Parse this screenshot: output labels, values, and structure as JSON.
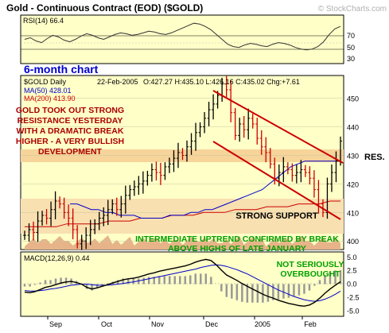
{
  "chart_data": {
    "type": "bar",
    "title": "Gold - Continuous Contract (EOD) ($GOLD)",
    "watermark": "© StockCharts.com",
    "colors": {
      "background": "#ffffc8",
      "frame": "#000000",
      "up_bar": "#000000",
      "down_bar": "#cc0000",
      "ma50": "#0000cc",
      "ma200": "#cc0000",
      "channel": "#cc0000",
      "annotation_red": "#aa0000",
      "annotation_green": "#00a000",
      "resistance_band": "#f6d49a",
      "support_band": "#f8e0b0",
      "volume_fill": "#e6b488",
      "rsi_line": "#333333",
      "macd_line": "#000000",
      "signal_line": "#0000cc",
      "histogram": "#999999"
    },
    "rsi": {
      "label": "RSI(14) 66.4",
      "ticks": [
        "70",
        "50",
        "30"
      ],
      "ylim": [
        20,
        80
      ],
      "values": [
        50,
        52,
        48,
        46,
        51,
        55,
        53,
        49,
        47,
        50,
        54,
        57,
        55,
        52,
        50,
        53,
        56,
        58,
        57,
        55,
        56,
        58,
        60,
        59,
        57,
        56,
        58,
        61,
        64,
        67,
        70,
        69,
        66,
        62,
        56,
        50,
        44,
        41,
        40,
        43,
        45,
        44,
        42,
        41,
        44,
        46,
        45,
        43,
        40,
        38,
        37,
        38,
        41,
        47,
        56,
        63,
        66
      ]
    },
    "price": {
      "header_symbol": "$GOLD Daily",
      "header_date": "22-Feb-2005",
      "header_ohlc": "O:427.27 H:435.10 L:426.16 C:435.02 Chg:+7.61",
      "ma50_label": "MA(50) 428.01",
      "ma200_label": "MA(200) 413.90",
      "period_label": "6-month chart",
      "ylim": [
        397,
        458
      ],
      "ticks": [
        "450",
        "440",
        "430",
        "420",
        "410",
        "400"
      ],
      "closes": [
        402,
        404,
        403,
        407,
        409,
        408,
        411,
        414,
        413,
        410,
        408,
        404,
        399,
        400,
        402,
        404,
        406,
        408,
        409,
        411,
        413,
        411,
        413,
        416,
        418,
        419,
        420,
        421,
        423,
        425,
        424,
        423,
        426,
        427,
        429,
        431,
        430,
        433,
        435,
        438,
        440,
        443,
        446,
        448,
        451,
        455,
        453,
        445,
        437,
        441,
        439,
        443,
        441,
        436,
        433,
        431,
        427,
        422,
        424,
        426,
        425,
        423,
        424,
        425,
        424,
        422,
        418,
        413,
        410,
        420,
        424,
        428,
        435
      ],
      "ma50_closes": [
        413,
        413,
        412,
        411,
        411,
        410,
        410,
        409,
        409,
        409,
        408,
        408,
        408,
        408,
        409,
        409,
        409,
        410,
        410,
        411,
        411,
        412,
        413,
        414,
        415,
        416,
        417,
        418,
        420,
        422,
        424,
        426,
        427,
        428,
        428,
        428,
        428,
        428,
        428
      ],
      "ma200_closes": [
        405,
        405,
        405,
        405,
        406,
        406,
        406,
        406,
        407,
        407,
        407,
        408,
        408,
        408,
        409,
        409,
        409,
        410,
        410,
        410,
        411,
        411,
        411,
        412,
        412,
        412,
        413,
        413,
        413,
        414,
        414
      ],
      "x_labels": [
        "Sep",
        "Oct",
        "Nov",
        "Dec",
        "2005",
        "Feb"
      ],
      "resistance_label": "RES.",
      "support_label": "STRONG SUPPORT",
      "annotation_breakout": "GOLD TOOK OUT STRONG RESISTANCE YESTERDAY WITH A DRAMATIC BREAK HIGHER - A VERY BULLISH DEVELOPMENT",
      "annotation_uptrend": "INTERMEDIATE UPTREND CONFIRMED BY BREAK ABOVE HIGHS OF LATE JANUARY"
    },
    "macd": {
      "label": "MACD(12,26,9) 0.44",
      "ticks": [
        "5.0",
        "2.5",
        "0.0",
        "-2.5",
        "-5.0"
      ],
      "ylim": [
        -6,
        6
      ],
      "annotation": "NOT SERIOUSLY OVERBOUGHT",
      "macd_line": [
        -1.5,
        -1.6,
        -1.4,
        -1.0,
        -0.6,
        -0.4,
        -0.1,
        0.2,
        0.4,
        0.5,
        0.3,
        0.0,
        -0.6,
        -0.9,
        -0.7,
        -0.4,
        -0.1,
        0.2,
        0.5,
        0.8,
        1.0,
        1.1,
        1.3,
        1.6,
        1.9,
        2.1,
        2.4,
        2.6,
        2.8,
        3.0,
        3.2,
        3.4,
        3.7,
        4.1,
        4.4,
        4.6,
        4.4,
        3.6,
        2.6,
        1.7,
        1.2,
        0.7,
        0.1,
        -0.4,
        -0.9,
        -1.4,
        -1.9,
        -2.3,
        -2.6,
        -3.0,
        -3.3,
        -3.6,
        -3.8,
        -4.0,
        -4.1,
        -3.9,
        -3.4,
        -2.6,
        -1.7,
        -0.9,
        -0.2,
        0.44
      ],
      "signal_line": [
        -1.2,
        -1.3,
        -1.3,
        -1.2,
        -1.1,
        -0.9,
        -0.8,
        -0.6,
        -0.4,
        -0.2,
        -0.1,
        0.0,
        0.0,
        -0.1,
        -0.2,
        -0.2,
        -0.2,
        -0.1,
        0.0,
        0.1,
        0.3,
        0.4,
        0.6,
        0.8,
        1.0,
        1.2,
        1.4,
        1.6,
        1.8,
        2.0,
        2.2,
        2.4,
        2.6,
        2.8,
        3.1,
        3.3,
        3.5,
        3.6,
        3.5,
        3.3,
        3.0,
        2.7,
        2.3,
        1.9,
        1.4,
        0.9,
        0.4,
        -0.1,
        -0.6,
        -1.1,
        -1.5,
        -1.9,
        -2.3,
        -2.6,
        -2.9,
        -3.1,
        -3.2,
        -3.1,
        -2.8,
        -2.4,
        -1.9,
        -1.3
      ]
    }
  }
}
